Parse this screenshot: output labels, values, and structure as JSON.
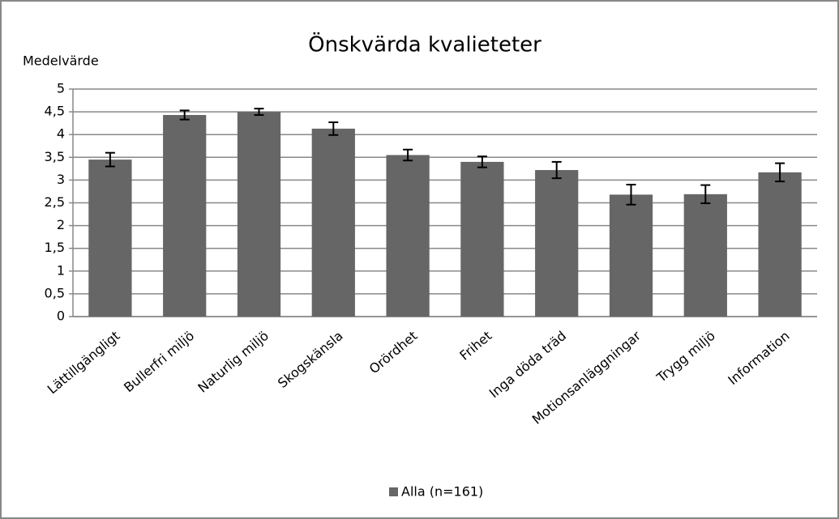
{
  "chart_data": {
    "type": "bar",
    "title": "Önskvärda kvalieteter",
    "y_label": "Medelvärde",
    "categories": [
      "Lättillgängligt",
      "Bullerfri miljö",
      "Naturlig miljö",
      "Skogskänsla",
      "Orördhet",
      "Frihet",
      "Inga döda träd",
      "Motionsanläggningar",
      "Trygg miljö",
      "Information"
    ],
    "series": [
      {
        "name": "Alla (n=161)",
        "color": "#666666",
        "values": [
          3.45,
          4.43,
          4.5,
          4.13,
          3.55,
          3.4,
          3.22,
          2.68,
          2.69,
          3.17
        ],
        "errors": [
          0.15,
          0.1,
          0.07,
          0.14,
          0.12,
          0.12,
          0.18,
          0.22,
          0.2,
          0.2
        ]
      }
    ],
    "ylim": [
      0,
      5
    ],
    "yticks": [
      0,
      {
        "value": 0.5,
        "label": "0,5"
      },
      1,
      {
        "value": 1.5,
        "label": "1,5"
      },
      2,
      {
        "value": 2.5,
        "label": "2,5"
      },
      3,
      {
        "value": 3.5,
        "label": "3,5"
      },
      4,
      {
        "value": 4.5,
        "label": "4,5"
      },
      5
    ],
    "grid": true,
    "legend": "bottom"
  }
}
